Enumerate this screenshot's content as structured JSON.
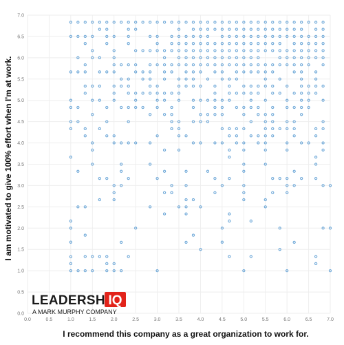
{
  "chart_data": {
    "type": "scatter",
    "title": "",
    "xlabel": "I recommend this company as a great organization to work for.",
    "ylabel": "I am motivated to give 100% effort when I'm at work.",
    "xlim": [
      0,
      7
    ],
    "ylim": [
      0,
      7
    ],
    "x_ticks": [
      "0.0",
      "0.5",
      "1.0",
      "1.5",
      "2.0",
      "2.5",
      "3.0",
      "3.5",
      "4.0",
      "4.5",
      "5.0",
      "5.5",
      "6.0",
      "6.5",
      "7.0"
    ],
    "y_ticks": [
      "0.0",
      "0.5",
      "1.0",
      "1.5",
      "2.0",
      "2.5",
      "3.0",
      "3.5",
      "4.0",
      "4.5",
      "5.0",
      "5.5",
      "6.0",
      "6.5",
      "7.0"
    ],
    "grid": true,
    "point_step": 0.1667,
    "point_color": "#6ea8d8",
    "density_regions": [
      {
        "x": [
          1.0,
          7.0
        ],
        "y": [
          6.67,
          7.0
        ],
        "density": 0.98
      },
      {
        "x": [
          3.5,
          7.0
        ],
        "y": [
          5.83,
          6.67
        ],
        "density": 0.92
      },
      {
        "x": [
          1.0,
          3.5
        ],
        "y": [
          5.83,
          6.67
        ],
        "density": 0.5
      },
      {
        "x": [
          3.0,
          7.0
        ],
        "y": [
          4.83,
          5.83
        ],
        "density": 0.62
      },
      {
        "x": [
          1.0,
          3.0
        ],
        "y": [
          4.83,
          5.83
        ],
        "density": 0.38
      },
      {
        "x": [
          3.0,
          7.0
        ],
        "y": [
          3.67,
          4.83
        ],
        "density": 0.42
      },
      {
        "x": [
          1.0,
          3.0
        ],
        "y": [
          3.67,
          4.83
        ],
        "density": 0.28
      },
      {
        "x": [
          1.0,
          7.0
        ],
        "y": [
          2.5,
          3.67
        ],
        "density": 0.18
      },
      {
        "x": [
          1.0,
          7.0
        ],
        "y": [
          1.5,
          2.5
        ],
        "density": 0.08
      },
      {
        "x": [
          1.0,
          2.5
        ],
        "y": [
          1.0,
          1.5
        ],
        "density": 0.35
      },
      {
        "x": [
          2.5,
          7.0
        ],
        "y": [
          1.0,
          1.5
        ],
        "density": 0.04
      }
    ],
    "extra_points": [
      [
        1.0,
        1.0
      ],
      [
        1.0,
        1.17
      ],
      [
        1.0,
        1.33
      ],
      [
        1.0,
        1.67
      ],
      [
        1.0,
        2.0
      ],
      [
        1.17,
        1.0
      ],
      [
        1.5,
        1.0
      ],
      [
        2.0,
        1.0
      ],
      [
        3.0,
        1.0
      ],
      [
        5.0,
        1.0
      ],
      [
        6.0,
        1.0
      ],
      [
        7.0,
        1.0
      ],
      [
        7.0,
        2.0
      ],
      [
        7.0,
        3.0
      ],
      [
        6.17,
        1.67
      ],
      [
        4.5,
        1.67
      ]
    ]
  },
  "logo": {
    "main": "LEADERSHIP",
    "box": "IQ",
    "sub": "A MARK MURPHY COMPANY",
    "brand_color": "#e2231a"
  }
}
